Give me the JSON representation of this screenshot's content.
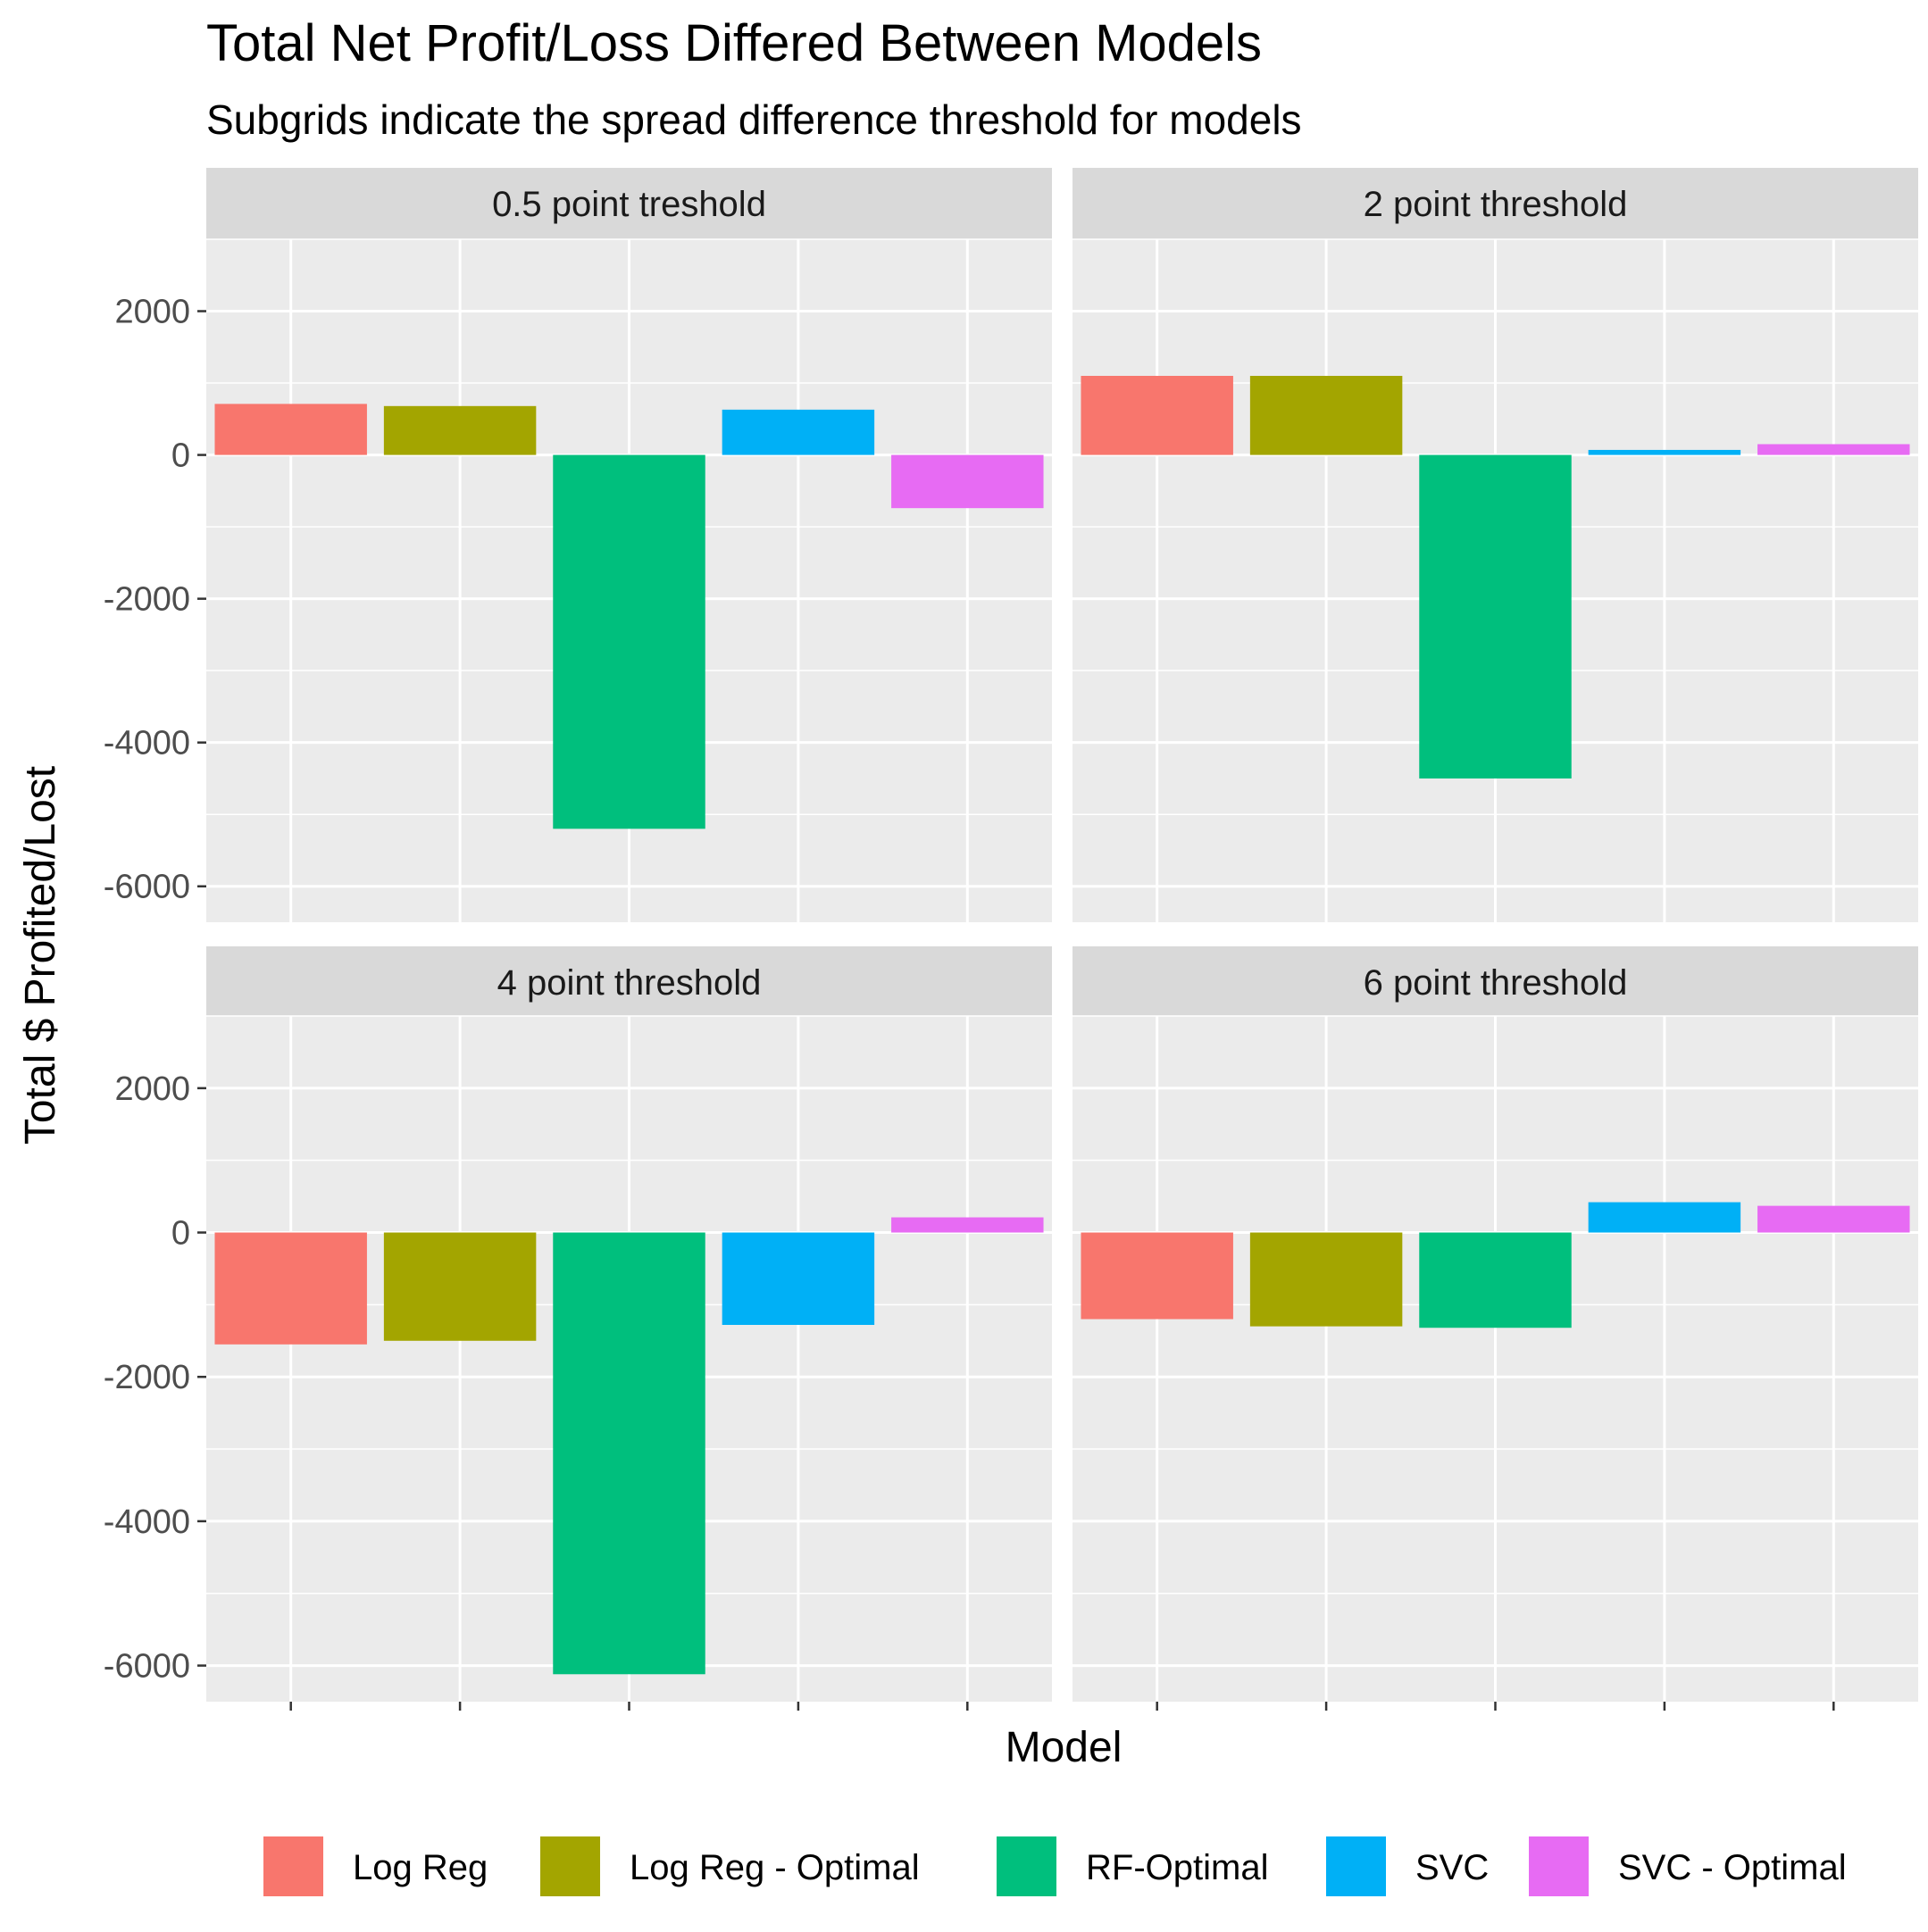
{
  "chart_data": {
    "type": "bar",
    "title": "Total Net Profit/Loss Differed Between Models",
    "subtitle": "Subgrids indicate the spread difference threshold for models",
    "xlabel": "Model",
    "ylabel": "Total $ Profited/Lost",
    "ylim": [
      -6500,
      3000
    ],
    "yticks": [
      2000,
      0,
      -2000,
      -4000,
      -6000
    ],
    "ytick_labels": [
      "2000",
      "0",
      "-2000",
      "-4000",
      "-6000"
    ],
    "grid": true,
    "legend_position": "bottom",
    "categories": [
      "Log Reg",
      "Log Reg - Optimal",
      "RF-Optimal",
      "SVC",
      "SVC - Optimal"
    ],
    "colors": {
      "Log Reg": "#F8766D",
      "Log Reg - Optimal": "#A3A500",
      "RF-Optimal": "#00BF7D",
      "SVC": "#00B0F6",
      "SVC - Optimal": "#E76BF3"
    },
    "panels": [
      {
        "strip": "0.5 point treshold",
        "values": [
          710,
          680,
          -5200,
          630,
          -740
        ]
      },
      {
        "strip": "2 point threshold",
        "values": [
          1100,
          1100,
          -4500,
          70,
          150
        ]
      },
      {
        "strip": "4 point threshold",
        "values": [
          -1550,
          -1500,
          -6120,
          -1280,
          210
        ]
      },
      {
        "strip": "6 point threshold",
        "values": [
          -1200,
          -1300,
          -1320,
          420,
          370
        ]
      }
    ]
  }
}
